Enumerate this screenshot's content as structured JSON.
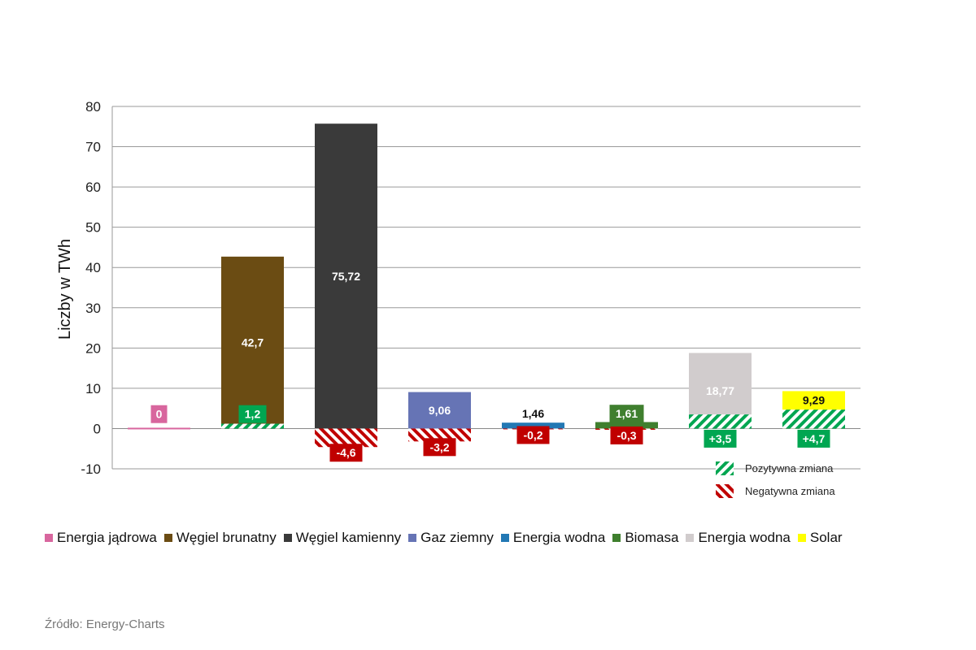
{
  "chart_data": {
    "type": "bar",
    "ylabel": "Liczby w TWh",
    "ylim": [
      -10,
      80
    ],
    "yticks": [
      -10,
      0,
      10,
      20,
      30,
      40,
      50,
      60,
      70,
      80
    ],
    "grid": true,
    "categories": [
      "Energia jądrowa",
      "Węgiel brunatny",
      "Węgiel kamienny",
      "Gaz ziemny",
      "Energia wodna",
      "Biomasa",
      "Energia wodna",
      "Solar"
    ],
    "values": [
      0,
      42.7,
      75.72,
      9.06,
      1.46,
      1.61,
      18.77,
      9.29
    ],
    "value_labels": [
      "0",
      "42,7",
      "75,72",
      "9,06",
      "1,46",
      "1,61",
      "18,77",
      "9,29"
    ],
    "changes": [
      0,
      1.2,
      -4.6,
      -3.2,
      -0.2,
      -0.3,
      3.5,
      4.7
    ],
    "change_labels": [
      "",
      "1,2",
      "-4,6",
      "-3,2",
      "-0,2",
      "-0,3",
      "+3,5",
      "+4,7"
    ],
    "colors": [
      "#d8669e",
      "#6b4c13",
      "#3a3a3a",
      "#6674b5",
      "#2278b4",
      "#3f7f2e",
      "#d1cccd",
      "#ffff00"
    ],
    "positive_color": "#00a651",
    "negative_color": "#c00000",
    "change_legend": [
      {
        "label": "Pozytywna zmiana",
        "kind": "positive"
      },
      {
        "label": "Negatywna zmiana",
        "kind": "negative"
      }
    ],
    "legend_position": "bottom"
  },
  "source": "Źródło: Energy-Charts"
}
